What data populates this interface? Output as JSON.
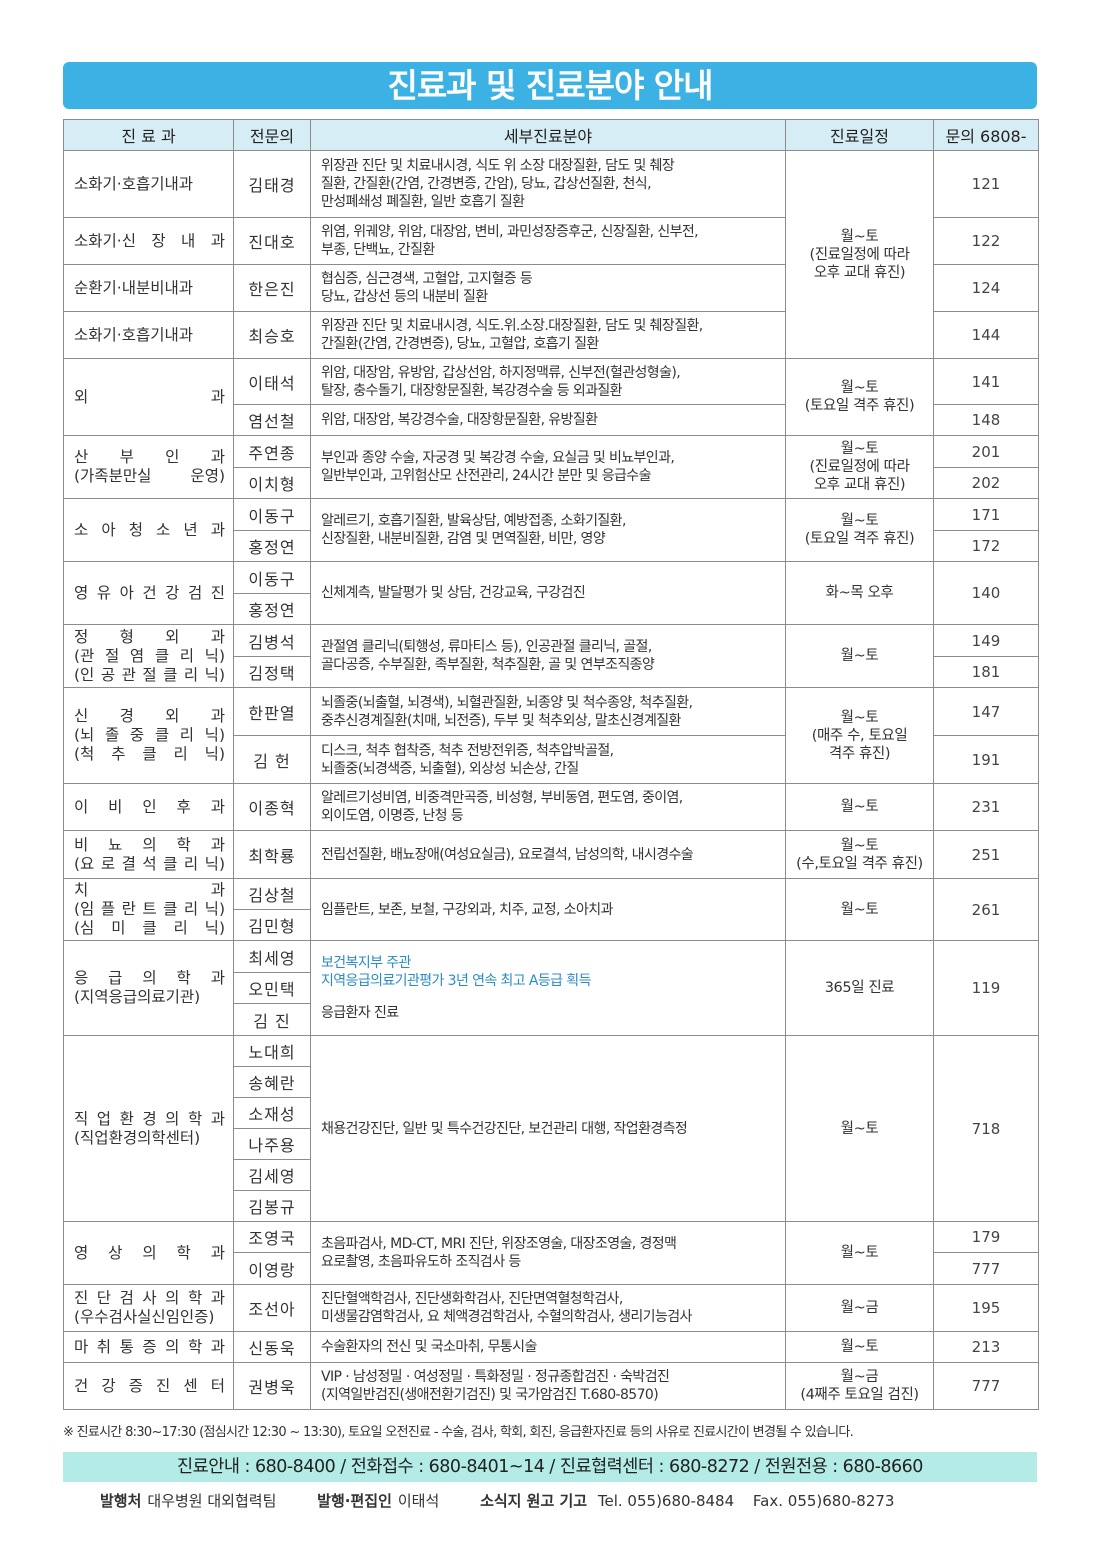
{
  "title": "진료과 및 진료분야 안내",
  "headers": [
    "진 료 과",
    "전문의",
    "세부진료분야",
    "진료일정",
    "문의 6808-"
  ],
  "departments": [
    {
      "name": [
        "소화기·호흡기내과"
      ],
      "doctors": [
        "김태경"
      ],
      "details": [
        "위장관 진단 및 치료내시경, 식도  위  소장  대장질환, 담도 및 췌장\n질환, 간질환(간염, 간경변증, 간암), 당뇨, 갑상선질환, 천식,\n만성폐쇄성 폐질환, 일반 호흡기 질환"
      ],
      "phones": [
        "121"
      ]
    },
    {
      "name": [
        "소화기·신 장 내 과"
      ],
      "doctors": [
        "진대호"
      ],
      "details": [
        "위염, 위궤양, 위암, 대장암, 변비, 과민성장증후군, 신장질환, 신부전,\n부종, 단백뇨, 간질환"
      ],
      "phones": [
        "122"
      ]
    },
    {
      "name": [
        "순환기·내분비내과"
      ],
      "doctors": [
        "한은진"
      ],
      "details": [
        "협심증, 심근경색, 고혈압, 고지혈증 등\n당뇨, 갑상선 등의 내분비 질환"
      ],
      "phones": [
        "124"
      ]
    },
    {
      "name": [
        "소화기·호흡기내과"
      ],
      "doctors": [
        "최승호"
      ],
      "details": [
        "위장관 진단 및 치료내시경, 식도.위.소장.대장질환, 담도 및 췌장질환,\n간질환(간염, 간경변증), 당뇨, 고혈압, 호흡기 질환"
      ],
      "phones": [
        "144"
      ]
    },
    {
      "name": [
        "외 과"
      ],
      "doctors": [
        "이태석",
        "염선철"
      ],
      "details": [
        "위암, 대장암, 유방암, 갑상선암, 하지정맥류, 신부전(혈관성형술),\n탈장, 충수돌기, 대장항문질환, 복강경수술 등 외과질환",
        "위암, 대장암, 복강경수술, 대장항문질환, 유방질환"
      ],
      "phones": [
        "141",
        "148"
      ]
    },
    {
      "name": [
        "산 부 인 과",
        "(가족분만실 운영)"
      ],
      "doctors": [
        "주연종",
        "이치형"
      ],
      "details": [
        "부인과 종양 수술, 자궁경 및 복강경 수술, 요실금 및 비뇨부인과,\n일반부인과, 고위험산모 산전관리, 24시간 분만 및 응급수술"
      ],
      "phones": [
        "201",
        "202"
      ]
    },
    {
      "name": [
        "소 아 청 소 년 과"
      ],
      "doctors": [
        "이동구",
        "홍정연"
      ],
      "details": [
        "알레르기, 호흡기질환, 발육상담, 예방접종, 소화기질환,\n신장질환, 내분비질환, 감염 및 면역질환, 비만, 영양"
      ],
      "phones": [
        "171",
        "172"
      ]
    },
    {
      "name": [
        "영 유 아 건 강 검 진"
      ],
      "doctors": [
        "이동구",
        "홍정연"
      ],
      "details": [
        "신체계측, 발달평가 및 상담, 건강교육, 구강검진"
      ],
      "phones": [
        "140"
      ]
    },
    {
      "name": [
        "정 형 외 과",
        "(관 절 염 클 리 닉)",
        "(인 공 관 절 클 리 닉)"
      ],
      "doctors": [
        "김병석",
        "김정택"
      ],
      "details": [
        "관절염 클리닉(퇴행성, 류마티스 등), 인공관절 클리닉, 골절,\n골다공증, 수부질환, 족부질환, 척추질환, 골 및 연부조직종양"
      ],
      "phones": [
        "149",
        "181"
      ]
    },
    {
      "name": [
        "신 경 외 과",
        "(뇌 졸 중 클 리 닉)",
        "(척 추 클 리 닉)"
      ],
      "doctors": [
        "한판열",
        "김 헌"
      ],
      "details": [
        "뇌졸중(뇌출혈, 뇌경색), 뇌혈관질환, 뇌종양 및 척수종양, 척추질환,\n중추신경계질환(치매, 뇌전증), 두부 및 척추외상, 말초신경계질환",
        "디스크, 척추 협착증, 척추 전방전위증, 척추압박골절,\n뇌졸중(뇌경색증, 뇌출혈), 외상성 뇌손상, 간질"
      ],
      "phones": [
        "147",
        "191"
      ]
    },
    {
      "name": [
        "이 비 인 후 과"
      ],
      "doctors": [
        "이종혁"
      ],
      "details": [
        "알레르기성비염, 비중격만곡증, 비성형, 부비동염, 편도염, 중이염,\n외이도염, 이명증, 난청 등"
      ],
      "phones": [
        "231"
      ]
    },
    {
      "name": [
        "비 뇨 의 학 과",
        "(요 로 결 석 클 리 닉)"
      ],
      "doctors": [
        "최학룡"
      ],
      "details": [
        "전립선질환, 배뇨장애(여성요실금), 요로결석, 남성의학, 내시경수술"
      ],
      "phones": [
        "251"
      ]
    },
    {
      "name": [
        "치 과",
        "(임 플 란 트 클 리 닉)",
        "(심 미 클 리 닉)"
      ],
      "doctors": [
        "김상철",
        "김민형"
      ],
      "details": [
        "임플란트, 보존, 보철, 구강외과, 치주, 교정, 소아치과"
      ],
      "phones": [
        "261"
      ]
    },
    {
      "name": [
        "응 급 의 학 과",
        "(지역응급의료기관)"
      ],
      "doctors": [
        "최세영",
        "오민택",
        "김 진"
      ],
      "highlight": [
        "보건복지부 주관",
        "지역응급의료기관평가 3년 연속 최고 A등급 획득"
      ],
      "details": [
        "응급환자 진료"
      ],
      "phones": [
        "119"
      ]
    },
    {
      "name": [
        "직 업 환 경 의 학 과",
        "(직업환경의학센터)"
      ],
      "doctors": [
        "노대희",
        "송혜란",
        "소재성",
        "나주용",
        "김세영",
        "김봉규"
      ],
      "details": [
        "채용건강진단, 일반 및 특수건강진단, 보건관리 대행, 작업환경측정"
      ],
      "phones": [
        "718"
      ]
    },
    {
      "name": [
        "영 상 의 학 과"
      ],
      "doctors": [
        "조영국",
        "이영랑"
      ],
      "details": [
        "초음파검사, MD-CT, MRI 진단, 위장조영술, 대장조영술, 경정맥\n요로촬영, 초음파유도하 조직검사 등"
      ],
      "phones": [
        "179",
        "777"
      ]
    },
    {
      "name": [
        "진 단 검 사 의 학 과",
        "(우수검사실신임인증)"
      ],
      "doctors": [
        "조선아"
      ],
      "details": [
        "진단혈액학검사, 진단생화학검사, 진단면역혈청학검사,\n미생물감염학검사, 요 체액경검학검사, 수혈의학검사, 생리기능검사"
      ],
      "phones": [
        "195"
      ]
    },
    {
      "name": [
        "마 취 통 증 의 학 과"
      ],
      "doctors": [
        "신동욱"
      ],
      "details": [
        "수술환자의 전신 및 국소마취, 무통시술"
      ],
      "phones": [
        "213"
      ]
    },
    {
      "name": [
        "건 강 증 진 센 터"
      ],
      "doctors": [
        "권병욱"
      ],
      "details": [
        "VIP · 남성정밀 · 여성정밀 · 특화정밀 · 정규종합검진 · 숙박검진\n(지역일반검진(생애전환기검진) 및 국가암검진 T.680-8570)"
      ],
      "phones": [
        "777"
      ]
    }
  ],
  "schedules": [
    [
      "월~토",
      "(진료일정에 따라",
      "오후 교대 휴진)"
    ],
    [
      "월~토",
      "(토요일 격주 휴진)"
    ],
    [
      "월~토",
      "(진료일정에 따라",
      "오후 교대 휴진)"
    ],
    [
      "월~토",
      "(토요일 격주 휴진)"
    ],
    [
      "화~목 오후"
    ],
    [
      "월~토"
    ],
    [
      "월~토",
      "(매주 수, 토요일",
      "격주 휴진)"
    ],
    [
      "월~토"
    ],
    [
      "월~토",
      "(수,토요일 격주 휴진)"
    ],
    [
      "월~토"
    ],
    [
      "365일 진료"
    ],
    [
      "월~토"
    ],
    [
      "월~토"
    ],
    [
      "월~금"
    ],
    [
      "월~토"
    ],
    [
      "월~금",
      "(4째주 토요일 검진)"
    ]
  ],
  "note": "※ 진료시간 8:30~17:30 (점심시간 12:30 ~ 13:30), 토요일 오전진료 - 수술, 검사, 학회, 회진, 응급환자진료 등의 사유로 진료시간이 변경될 수 있습니다.",
  "contact_band": "진료안내 : 680-8400  /  전화접수 : 680-8401~14  /  진료협력센터 : 680-8272  /  전원전용 : 680-8660",
  "publisher": {
    "publisher_label": "발행처",
    "publisher": "대우병원 대외협력팀",
    "editor_label": "발행·편집인",
    "editor": "이태석",
    "submit_label": "소식지 원고 기고",
    "tel": "Tel. 055)680-8484",
    "fax": "Fax. 055)680-8273"
  },
  "colors": {
    "title_bar": "#3cb2e4",
    "header_bg": "#d7edf6",
    "contact_band": "#b3ebe7",
    "highlight_text": "#2a8cc6"
  }
}
